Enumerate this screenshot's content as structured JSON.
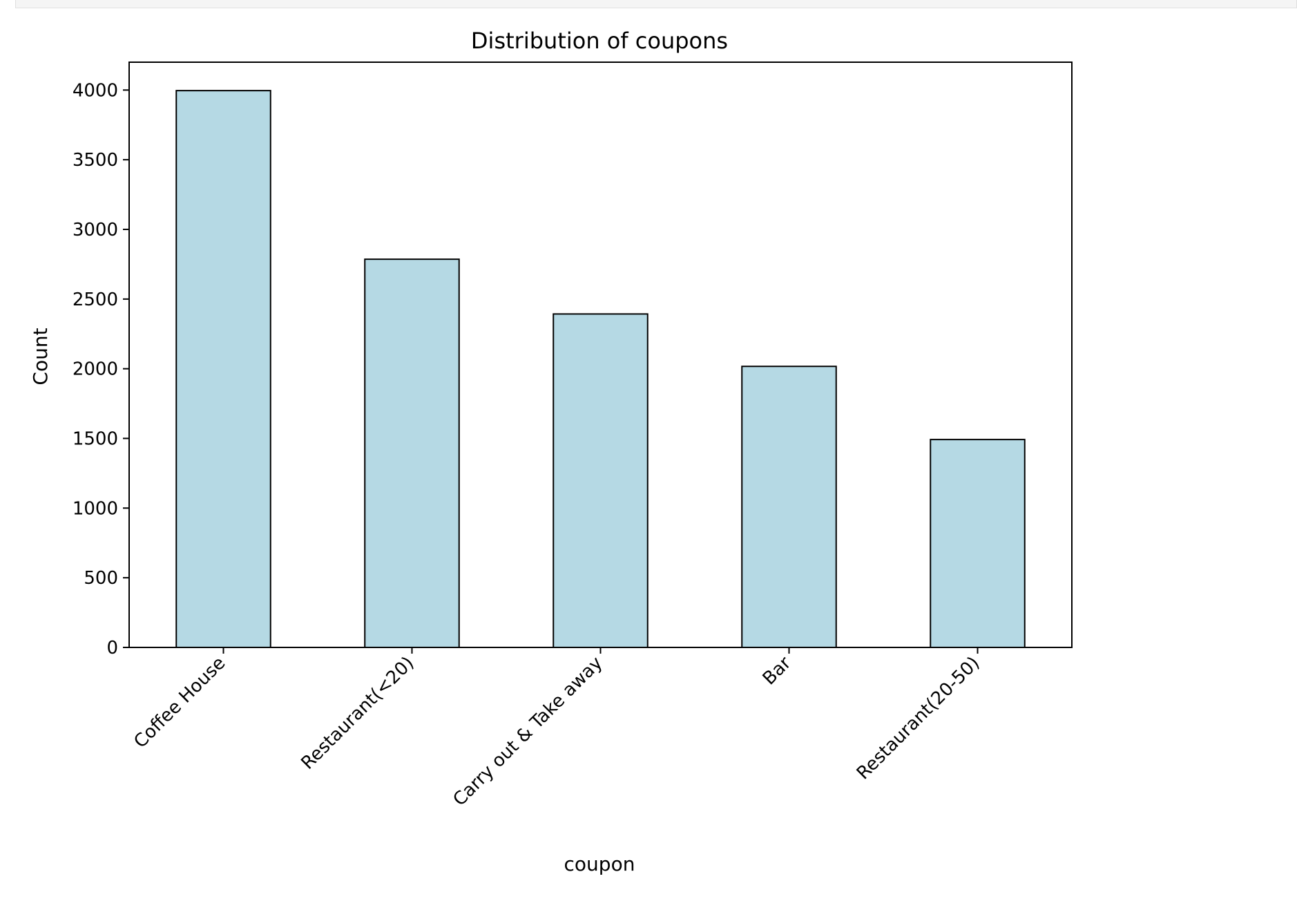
{
  "chart_data": {
    "type": "bar",
    "title": "Distribution of coupons",
    "xlabel": "coupon",
    "ylabel": "Count",
    "categories": [
      "Coffee House",
      "Restaurant(<20)",
      "Carry out & Take away",
      "Bar",
      "Restaurant(20-50)"
    ],
    "values": [
      3996,
      2786,
      2393,
      2017,
      1492
    ],
    "ylim": [
      0,
      4200
    ],
    "yticks": [
      0,
      500,
      1000,
      1500,
      2000,
      2500,
      3000,
      3500,
      4000
    ],
    "grid": false,
    "legend": "none",
    "bar_color": "#b5d9e4",
    "edge_color": "#000000"
  }
}
